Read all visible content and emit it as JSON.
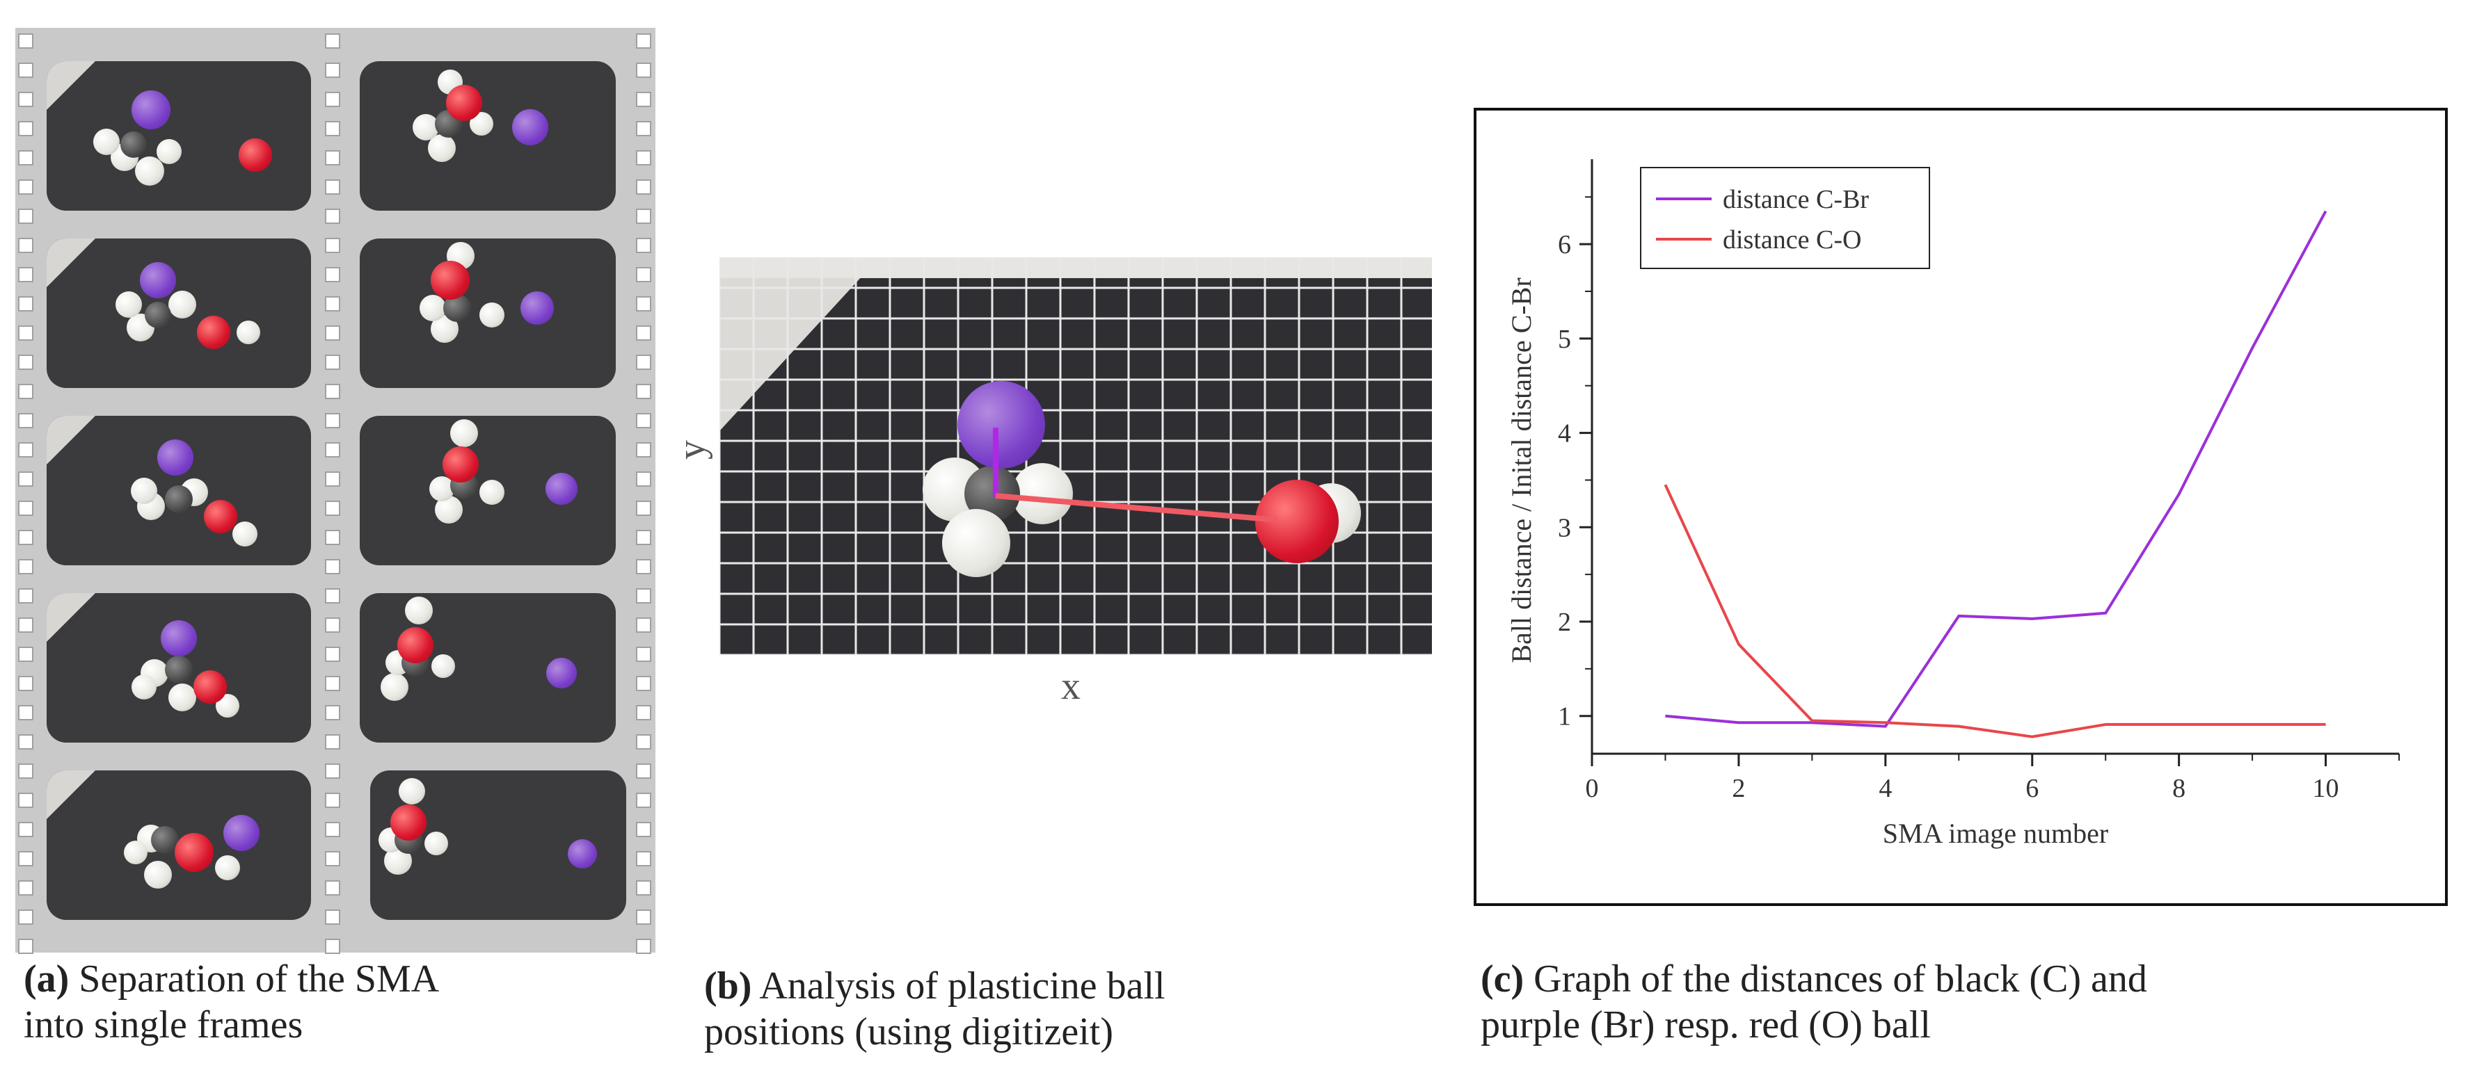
{
  "captions": {
    "a": {
      "label": "(a)",
      "text_line1": " Separation of the SMA",
      "text_line2": "into single frames"
    },
    "b": {
      "label": "(b)",
      "text_line1": " Analysis of plasticine ball",
      "text_line2": "positions (using digitizeit)"
    },
    "c": {
      "label": "(c)",
      "text_line1": " Graph of the distances of black (C) and",
      "text_line2": "purple (Br) resp. red (O) ball"
    }
  },
  "photo_axes": {
    "x": "x",
    "y": "y"
  },
  "colors": {
    "purple": "#9b30d9",
    "red": "#e8464b",
    "ball_purple": "#7a3fc9",
    "ball_red": "#d8142b"
  },
  "chart_data": {
    "type": "line",
    "xlabel": "SMA image number",
    "ylabel": "Ball distance / Inital distance C-Br",
    "xlim": [
      0,
      11
    ],
    "ylim": [
      0.6,
      6.9
    ],
    "xticks": [
      0,
      2,
      4,
      6,
      8,
      10
    ],
    "yticks": [
      1,
      2,
      3,
      4,
      5,
      6
    ],
    "legend_position": "top-left",
    "x": [
      1,
      2,
      3,
      4,
      5,
      6,
      7,
      8,
      9,
      10
    ],
    "series": [
      {
        "name": "distance C-Br",
        "color": "#9b30d9",
        "values": [
          1.0,
          0.93,
          0.93,
          0.89,
          2.06,
          2.03,
          2.09,
          3.35,
          4.9,
          6.35
        ]
      },
      {
        "name": "distance C-O",
        "color": "#e8464b",
        "values": [
          3.45,
          1.76,
          0.95,
          0.93,
          0.89,
          0.78,
          0.91,
          0.91,
          0.91,
          0.91
        ]
      }
    ]
  }
}
